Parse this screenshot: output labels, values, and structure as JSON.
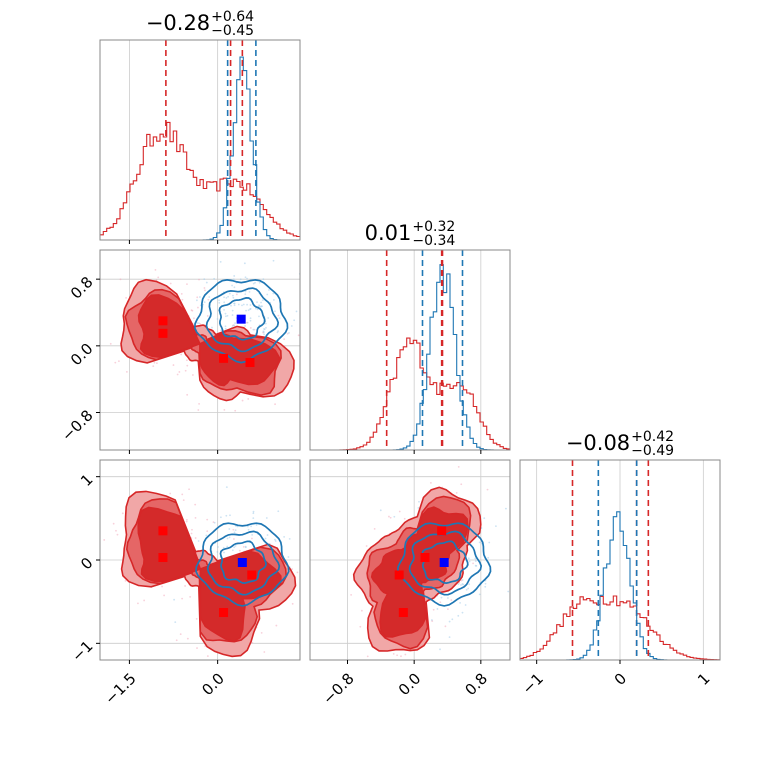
{
  "colors": {
    "red": "#d62728",
    "blue": "#1f77b4",
    "red_fill_outer": "#f1a7a7",
    "red_fill_mid": "#e56666",
    "red_fill_inner": "#d42a2a",
    "grid": "#cccccc",
    "axes": "#888888",
    "marker_red": "#ff0000",
    "marker_blue": "#0000ff"
  },
  "chart_data": {
    "type": "corner",
    "grid": true,
    "parameters": [
      {
        "title": {
          "median": "−0.28",
          "plus": "+0.64",
          "minus": "−0.45"
        },
        "range": [
          -2.0,
          1.4
        ],
        "ticks": [
          -1.5,
          0.0
        ],
        "ticklabels": [
          "−1.5",
          "0.0"
        ]
      },
      {
        "title": {
          "median": "0.01",
          "plus": "+0.32",
          "minus": "−0.34"
        },
        "range": [
          -1.25,
          1.15
        ],
        "ticks": [
          -0.8,
          0.0,
          0.8
        ],
        "ticklabels": [
          "−0.8",
          "0.0",
          "0.8"
        ]
      },
      {
        "title": {
          "median": "−0.08",
          "plus": "+0.42",
          "minus": "−0.49"
        },
        "range": [
          -1.2,
          1.2
        ],
        "ticks": [
          -1,
          0,
          1
        ],
        "ticklabels": [
          "−1",
          "0",
          "1"
        ]
      }
    ],
    "marginals": [
      {
        "red_quantiles": [
          -0.88,
          0.42
        ],
        "blue_quantiles": [
          0.17,
          0.65
        ],
        "red_hist": {
          "bins": [
            -2.0,
            -1.0
          ],
          "modes": [
            [
              -0.95,
              0.42,
              0.62
            ],
            [
              0.3,
              0.45,
              0.32
            ]
          ]
        },
        "blue_hist": {
          "modes": [
            [
              0.42,
              0.16,
              1.0
            ]
          ]
        }
      },
      {
        "red_quantiles": [
          -0.33,
          0.34
        ],
        "blue_quantiles": [
          0.1,
          0.58
        ],
        "red_hist": {
          "modes": [
            [
              -0.05,
              0.22,
              0.6
            ],
            [
              0.55,
              0.2,
              0.38
            ]
          ]
        },
        "blue_hist": {
          "modes": [
            [
              0.34,
              0.15,
              1.0
            ]
          ]
        }
      },
      {
        "red_quantiles": [
          -0.57,
          0.34
        ],
        "blue_quantiles": [
          -0.26,
          0.2
        ],
        "red_hist": {
          "modes": [
            [
              -0.55,
              0.25,
              0.2
            ],
            [
              0.0,
              0.35,
              0.32
            ]
          ]
        },
        "blue_hist": {
          "modes": [
            [
              -0.03,
              0.15,
              0.78
            ]
          ]
        }
      }
    ],
    "red_markers": {
      "p1_p2": [
        [
          -0.93,
          0.3
        ],
        [
          -0.93,
          0.15
        ],
        [
          0.1,
          -0.15
        ],
        [
          0.55,
          -0.2
        ]
      ],
      "p1_p3": [
        [
          -0.93,
          0.35
        ],
        [
          -0.93,
          0.03
        ],
        [
          0.1,
          -0.63
        ],
        [
          0.58,
          -0.18
        ]
      ],
      "p2_p3": [
        [
          -0.18,
          -0.18
        ],
        [
          -0.13,
          -0.63
        ],
        [
          0.13,
          0.03
        ],
        [
          0.33,
          0.35
        ]
      ]
    },
    "blue_markers": {
      "p1_p2": [
        [
          0.4,
          0.32
        ]
      ],
      "p1_p3": [
        [
          0.42,
          -0.03
        ]
      ],
      "p2_p3": [
        [
          0.36,
          -0.03
        ]
      ]
    }
  }
}
